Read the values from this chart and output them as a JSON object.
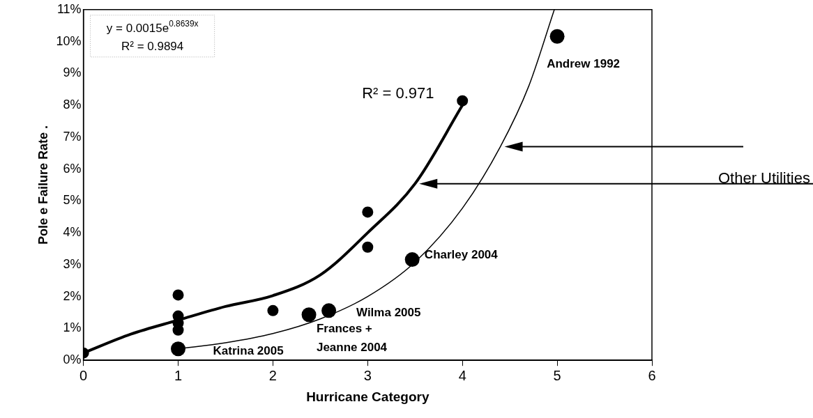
{
  "chart_data": {
    "type": "scatter",
    "xlabel": "Hurricane Category",
    "ylabel": "Pole e Failure Rate .",
    "xlim": [
      0,
      6
    ],
    "xticks": [
      0,
      1,
      2,
      3,
      4,
      5,
      6
    ],
    "ylim": [
      0,
      11
    ],
    "yticks": [
      {
        "value": 0,
        "label": "0%"
      },
      {
        "value": 1,
        "label": "1%"
      },
      {
        "value": 2,
        "label": "2%"
      },
      {
        "value": 3,
        "label": "3%"
      },
      {
        "value": 4,
        "label": "4%"
      },
      {
        "value": 5,
        "label": "5%"
      },
      {
        "value": 6,
        "label": "6%"
      },
      {
        "value": 7,
        "label": "7%"
      },
      {
        "value": 8,
        "label": "8%"
      },
      {
        "value": 9,
        "label": "9%"
      },
      {
        "value": 10,
        "label": "10%"
      },
      {
        "value": 11,
        "label": "11%"
      }
    ],
    "grid": false,
    "legend": false,
    "marker": "circle",
    "series": [
      {
        "color": "#000000",
        "x": [
          0,
          1,
          1,
          1,
          1,
          2,
          3,
          3,
          4
        ],
        "values": [
          0.23,
          2.05,
          1.39,
          1.17,
          0.95,
          1.56,
          4.65,
          3.55,
          8.14
        ]
      },
      {
        "color": "#000000",
        "x": [
          1,
          2.38,
          2.59,
          3.47,
          5
        ],
        "values": [
          0.36,
          1.43,
          1.56,
          3.16,
          10.16
        ]
      },
      {
        "type": "line",
        "name": "Other Utilities",
        "color": "#000000",
        "marker": "none",
        "line_style": "solid",
        "x": [
          0,
          0.5,
          1,
          1.5,
          2,
          2.5,
          3,
          3.5,
          4
        ],
        "values": [
          0.23,
          0.82,
          1.26,
          1.69,
          2.03,
          2.68,
          4.0,
          5.54,
          8.0
        ]
      },
      {
        "type": "line",
        "color": "#000000",
        "marker": "none",
        "line_style": "solid",
        "x": [
          1,
          1.5,
          2,
          2.5,
          3,
          3.5,
          4,
          4.4,
          4.7,
          4.97
        ],
        "values": [
          0.36,
          0.55,
          0.84,
          1.3,
          2.0,
          3.08,
          4.77,
          6.7,
          8.6,
          11.0
        ]
      }
    ],
    "annotations": [
      "y = 0.0015e$^{0.8639x}$\nR² = 0.9894",
      "R² = 0.971",
      "Andrew 1992",
      "Charley 2004",
      "Wilma 2005",
      "Frances +\nJeanne 2004",
      "Katrina 2005"
    ]
  }
}
